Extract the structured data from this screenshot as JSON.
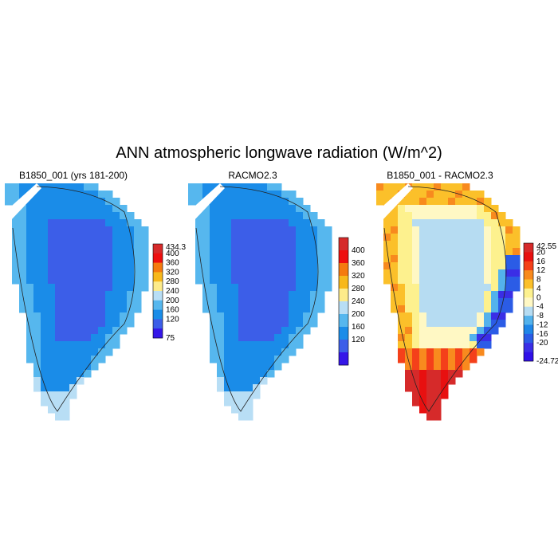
{
  "figure": {
    "title": "ANN atmospheric longwave radiation (W/m^2)"
  },
  "chart_data": [
    {
      "type": "heatmap",
      "title": "B1850_001 (yrs 181-200)",
      "region": "Greenland",
      "colorbar": {
        "labels": [
          "434.3",
          "400",
          "360",
          "320",
          "280",
          "240",
          "200",
          "160",
          "120",
          "75"
        ],
        "colors": [
          "#d62a2a",
          "#ee0e0e",
          "#f57a0e",
          "#f7b81b",
          "#fdeb8a",
          "#b8def5",
          "#56b7ee",
          "#1a8ce8",
          "#3c5ee8",
          "#3516e8"
        ]
      },
      "pattern": "interior low (~160-200), margins 200-240, isolated 280-320 cells on coast"
    },
    {
      "type": "heatmap",
      "title": "RACMO2.3",
      "region": "Greenland",
      "colorbar": {
        "labels": [
          "",
          "400",
          "360",
          "320",
          "280",
          "240",
          "200",
          "160",
          "120",
          ""
        ],
        "colors": [
          "#d62a2a",
          "#ee0e0e",
          "#f57a0e",
          "#f7b81b",
          "#fdeb8a",
          "#b8def5",
          "#56b7ee",
          "#1a8ce8",
          "#3c5ee8",
          "#3516e8"
        ]
      },
      "pattern": "interior low (~160-200), margins 200-240"
    },
    {
      "type": "heatmap",
      "title": "B1850_001 - RACMO2.3",
      "region": "Greenland",
      "colorbar": {
        "labels": [
          "42.55",
          "20",
          "16",
          "12",
          "8",
          "4",
          "0",
          "-4",
          "-8",
          "-12",
          "-16",
          "-20",
          "-24.72"
        ],
        "colors": [
          "#d62a2a",
          "#e81010",
          "#f4401a",
          "#f88a1e",
          "#fbc02a",
          "#fdf18e",
          "#fff8c4",
          "#b6dcf2",
          "#53b2ec",
          "#1f86e8",
          "#2b5ce6",
          "#3a2ee6",
          "#3010e8"
        ]
      },
      "pattern": "positive bias (4-8) in interior, strong positive (20+) in south, negative (-8 to -20) along east coast"
    }
  ]
}
